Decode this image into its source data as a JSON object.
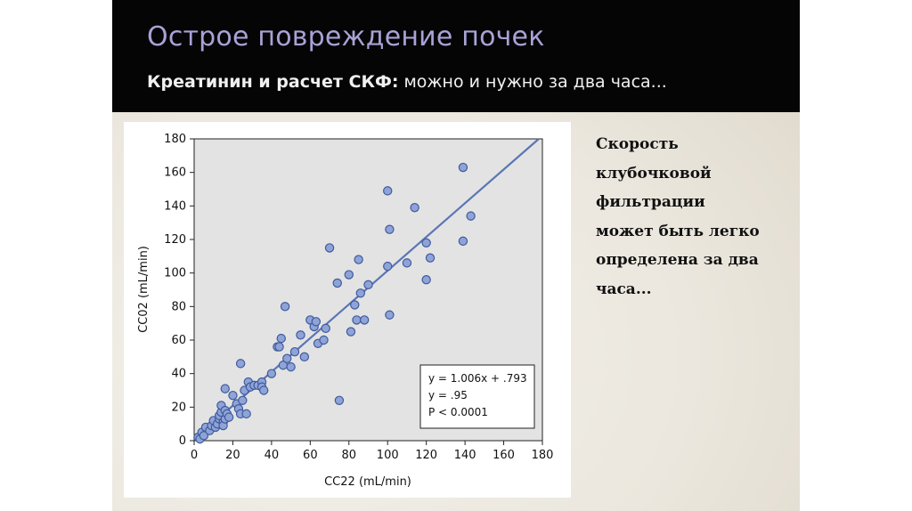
{
  "slide": {
    "title": "Острое повреждение почек",
    "subtitle_bold": "Креатинин и расчет СКФ:",
    "subtitle_rest": " можно и нужно за два часа...",
    "side_text": [
      "Скорость",
      "клубочковой",
      "фильтрации",
      "может быть легко",
      "определена за два",
      "часа..."
    ]
  },
  "chart_data": {
    "type": "scatter",
    "xlabel": "CC22 (mL/min)",
    "ylabel": "CC02 (mL/min)",
    "xlim": [
      0,
      180
    ],
    "ylim": [
      0,
      180
    ],
    "xticks": [
      "0",
      "20",
      "40",
      "60",
      "80",
      "100",
      "120",
      "140",
      "160",
      "180"
    ],
    "yticks": [
      "0",
      "20",
      "40",
      "60",
      "80",
      "100",
      "120",
      "140",
      "160",
      "180"
    ],
    "grid": false,
    "regression": {
      "slope": 1.006,
      "intercept": 0.793
    },
    "annotation": [
      "y = 1.006x + .793",
      "y = .95",
      "P < 0.0001"
    ],
    "colors": {
      "point_fill": "#8fa3d6",
      "point_stroke": "#3e5a9e",
      "line": "#5b76b4",
      "plot_bg": "#e3e3e3"
    },
    "points": [
      [
        2,
        2
      ],
      [
        3,
        1
      ],
      [
        4,
        5
      ],
      [
        5,
        3
      ],
      [
        6,
        8
      ],
      [
        8,
        6
      ],
      [
        9,
        9
      ],
      [
        10,
        12
      ],
      [
        11,
        8
      ],
      [
        12,
        10
      ],
      [
        13,
        13
      ],
      [
        13,
        15
      ],
      [
        14,
        17
      ],
      [
        14,
        21
      ],
      [
        15,
        11
      ],
      [
        15,
        9
      ],
      [
        16,
        18
      ],
      [
        16,
        13
      ],
      [
        17,
        16
      ],
      [
        18,
        14
      ],
      [
        16,
        31
      ],
      [
        20,
        27
      ],
      [
        22,
        22
      ],
      [
        23,
        19
      ],
      [
        24,
        16
      ],
      [
        25,
        24
      ],
      [
        26,
        30
      ],
      [
        27,
        16
      ],
      [
        28,
        35
      ],
      [
        29,
        32
      ],
      [
        31,
        33
      ],
      [
        33,
        33
      ],
      [
        35,
        35
      ],
      [
        35,
        32
      ],
      [
        36,
        30
      ],
      [
        24,
        46
      ],
      [
        40,
        40
      ],
      [
        43,
        56
      ],
      [
        44,
        56
      ],
      [
        45,
        61
      ],
      [
        47,
        80
      ],
      [
        46,
        45
      ],
      [
        48,
        49
      ],
      [
        50,
        44
      ],
      [
        52,
        53
      ],
      [
        55,
        63
      ],
      [
        57,
        50
      ],
      [
        60,
        72
      ],
      [
        62,
        68
      ],
      [
        63,
        71
      ],
      [
        64,
        58
      ],
      [
        67,
        60
      ],
      [
        68,
        67
      ],
      [
        70,
        115
      ],
      [
        74,
        94
      ],
      [
        80,
        99
      ],
      [
        81,
        65
      ],
      [
        83,
        81
      ],
      [
        84,
        72
      ],
      [
        85,
        108
      ],
      [
        86,
        88
      ],
      [
        88,
        72
      ],
      [
        90,
        93
      ],
      [
        100,
        104
      ],
      [
        100,
        149
      ],
      [
        101,
        126
      ],
      [
        101,
        75
      ],
      [
        110,
        106
      ],
      [
        114,
        139
      ],
      [
        120,
        118
      ],
      [
        120,
        96
      ],
      [
        122,
        109
      ],
      [
        139,
        163
      ],
      [
        139,
        119
      ],
      [
        143,
        134
      ],
      [
        75,
        24
      ]
    ]
  }
}
